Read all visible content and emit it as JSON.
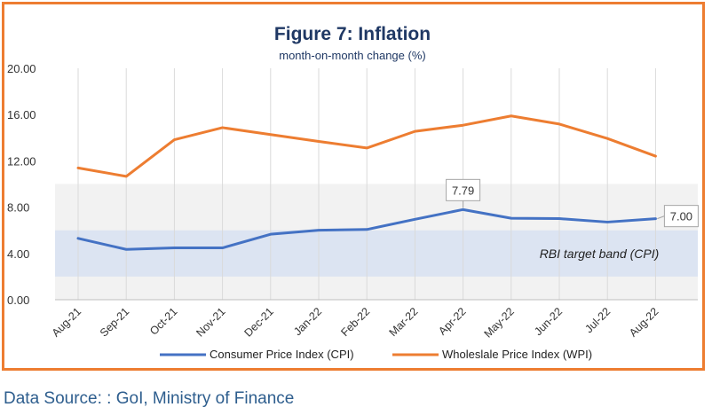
{
  "chart_data": {
    "type": "line",
    "title": "Figure 7: Inflation",
    "subtitle": "month-on-month change (%)",
    "categories": [
      "Aug-21",
      "Sep-21",
      "Oct-21",
      "Nov-21",
      "Dec-21",
      "Jan-22",
      "Feb-22",
      "Mar-22",
      "Apr-22",
      "May-22",
      "Jun-22",
      "Jul-22",
      "Aug-22"
    ],
    "series": [
      {
        "name": "Consumer Price Index (CPI)",
        "color": "#4472C4",
        "values": [
          5.3,
          4.35,
          4.48,
          4.48,
          5.66,
          6.01,
          6.07,
          6.95,
          7.79,
          7.04,
          7.01,
          6.71,
          7.0
        ]
      },
      {
        "name": "Wholeslale Price Index (WPI)",
        "color": "#ED7D31",
        "values": [
          11.39,
          10.66,
          13.83,
          14.87,
          14.27,
          13.68,
          13.11,
          14.55,
          15.08,
          15.88,
          15.18,
          13.93,
          12.41
        ]
      }
    ],
    "ylim": [
      0,
      20
    ],
    "yticks": [
      0,
      4,
      8,
      12,
      16,
      20
    ],
    "ytick_labels": [
      "0.00",
      "4.00",
      "8.00",
      "12.00",
      "16.00",
      "20.00"
    ],
    "target_band": {
      "label": "RBI target band (CPI)",
      "from": 2,
      "to": 6,
      "color": "#DCE4F2"
    },
    "shaded_region": {
      "from": 0,
      "to": 10,
      "color": "#F2F2F2"
    },
    "annotations": [
      {
        "series": 0,
        "index": 8,
        "text": "7.79",
        "position": "above"
      },
      {
        "series": 0,
        "index": 12,
        "text": "7.00",
        "position": "right"
      }
    ],
    "grid": "vertical",
    "legend": "bottom"
  },
  "footer": {
    "source": "Data Source: : GoI, Ministry of Finance"
  }
}
